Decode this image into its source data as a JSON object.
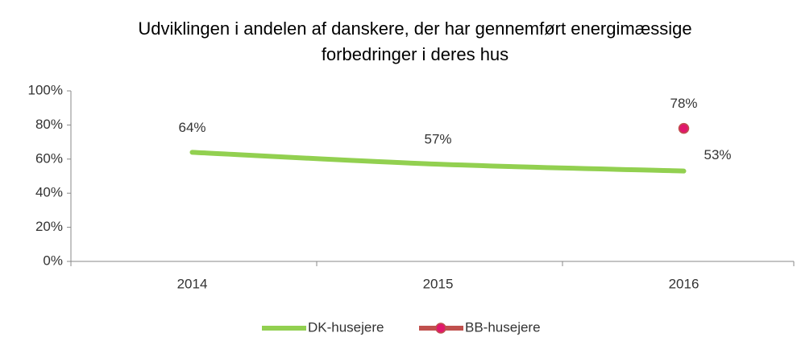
{
  "chart_data": {
    "type": "line",
    "title": [
      "Udviklingen i andelen af danskere, der har gennemført energimæssige",
      "forbedringer i deres hus"
    ],
    "categories": [
      "2014",
      "2015",
      "2016"
    ],
    "series": [
      {
        "name": "DK-husejere",
        "color": "#92d050",
        "values": [
          64,
          57,
          53
        ],
        "value_labels": [
          "64%",
          "57%",
          "53%"
        ]
      },
      {
        "name": "BB-husejere",
        "color": "#e0186c",
        "line_color": "#c0504d",
        "values": [
          null,
          null,
          78
        ],
        "value_labels": [
          null,
          null,
          "78%"
        ]
      }
    ],
    "ylim": [
      0,
      100
    ],
    "yticks": [
      {
        "value": 0,
        "label": "0%"
      },
      {
        "value": 20,
        "label": "20%"
      },
      {
        "value": 40,
        "label": "40%"
      },
      {
        "value": 60,
        "label": "60%"
      },
      {
        "value": 80,
        "label": "80%"
      },
      {
        "value": 100,
        "label": "100%"
      }
    ],
    "legend": "bottom"
  }
}
